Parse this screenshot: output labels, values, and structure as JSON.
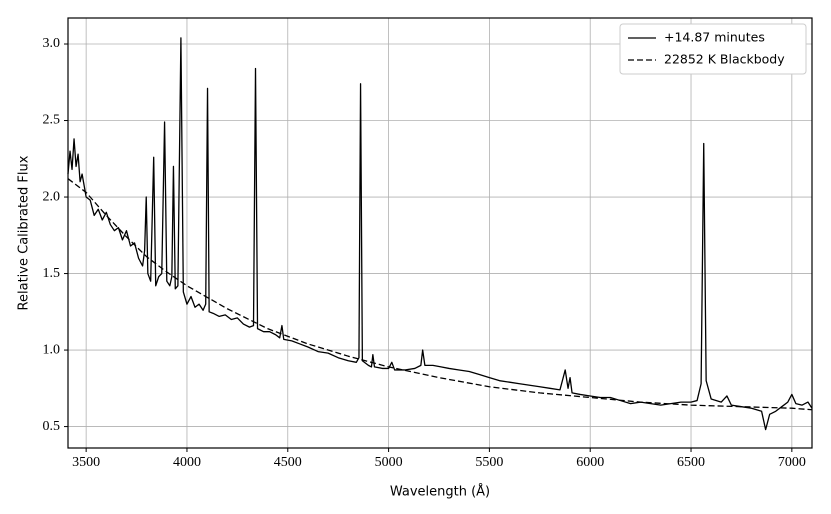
{
  "chart_data": {
    "type": "line",
    "xlabel": "Wavelength (Å)",
    "ylabel": "Relative Calibrated Flux",
    "xlim": [
      3410,
      7100
    ],
    "ylim": [
      0.36,
      3.17
    ],
    "xticks": [
      3500,
      4000,
      4500,
      5000,
      5500,
      6000,
      6500,
      7000
    ],
    "yticks": [
      0.5,
      {
        "value": 1,
        "label": "1.0"
      },
      1.5,
      {
        "value": 2,
        "label": "2.0"
      },
      2.5,
      {
        "value": 3,
        "label": "3.0"
      }
    ],
    "grid": true,
    "legend": "upper right",
    "series": [
      {
        "name": "+14.87 minutes",
        "color": "#000000",
        "linestyle": "solid",
        "x": [
          3410,
          3420,
          3430,
          3440,
          3450,
          3460,
          3470,
          3480,
          3500,
          3520,
          3540,
          3560,
          3580,
          3600,
          3620,
          3640,
          3660,
          3680,
          3700,
          3720,
          3740,
          3760,
          3780,
          3790,
          3798,
          3806,
          3820,
          3835,
          3845,
          3860,
          3875,
          3889,
          3900,
          3915,
          3925,
          3933,
          3942,
          3955,
          3970,
          3982,
          4000,
          4020,
          4040,
          4060,
          4080,
          4093,
          4102,
          4110,
          4130,
          4160,
          4190,
          4220,
          4250,
          4280,
          4310,
          4330,
          4340,
          4350,
          4380,
          4410,
          4440,
          4460,
          4471,
          4480,
          4520,
          4560,
          4600,
          4650,
          4700,
          4750,
          4800,
          4840,
          4853,
          4861,
          4870,
          4900,
          4915,
          4922,
          4930,
          4970,
          5000,
          5016,
          5030,
          5080,
          5130,
          5160,
          5169,
          5180,
          5220,
          5260,
          5300,
          5350,
          5400,
          5450,
          5500,
          5550,
          5600,
          5650,
          5700,
          5750,
          5800,
          5850,
          5876,
          5890,
          5900,
          5910,
          5950,
          6000,
          6050,
          6100,
          6150,
          6200,
          6250,
          6300,
          6350,
          6400,
          6450,
          6500,
          6530,
          6550,
          6563,
          6575,
          6600,
          6650,
          6678,
          6700,
          6750,
          6800,
          6850,
          6870,
          6890,
          6920,
          6950,
          6980,
          7000,
          7020,
          7050,
          7080,
          7100
        ],
        "values": [
          2.15,
          2.3,
          2.18,
          2.38,
          2.2,
          2.28,
          2.1,
          2.15,
          2.0,
          1.98,
          1.88,
          1.92,
          1.85,
          1.9,
          1.82,
          1.78,
          1.8,
          1.72,
          1.78,
          1.68,
          1.7,
          1.6,
          1.55,
          1.65,
          2.0,
          1.5,
          1.45,
          2.26,
          1.42,
          1.48,
          1.5,
          2.49,
          1.45,
          1.42,
          1.48,
          2.2,
          1.4,
          1.42,
          3.04,
          1.38,
          1.3,
          1.35,
          1.28,
          1.3,
          1.26,
          1.3,
          2.71,
          1.25,
          1.24,
          1.22,
          1.23,
          1.2,
          1.21,
          1.17,
          1.15,
          1.16,
          2.84,
          1.14,
          1.12,
          1.12,
          1.1,
          1.08,
          1.16,
          1.07,
          1.06,
          1.04,
          1.02,
          0.99,
          0.98,
          0.95,
          0.93,
          0.92,
          0.95,
          2.74,
          0.93,
          0.9,
          0.89,
          0.97,
          0.89,
          0.88,
          0.88,
          0.92,
          0.87,
          0.87,
          0.88,
          0.9,
          1.0,
          0.9,
          0.9,
          0.89,
          0.88,
          0.87,
          0.86,
          0.84,
          0.82,
          0.8,
          0.79,
          0.78,
          0.77,
          0.76,
          0.75,
          0.74,
          0.87,
          0.75,
          0.82,
          0.72,
          0.71,
          0.7,
          0.69,
          0.69,
          0.67,
          0.65,
          0.66,
          0.65,
          0.64,
          0.65,
          0.66,
          0.66,
          0.67,
          0.78,
          2.35,
          0.8,
          0.68,
          0.66,
          0.7,
          0.64,
          0.63,
          0.62,
          0.6,
          0.48,
          0.58,
          0.6,
          0.63,
          0.66,
          0.71,
          0.65,
          0.64,
          0.66,
          0.62
        ]
      },
      {
        "name": "22852 K Blackbody",
        "color": "#000000",
        "linestyle": "dashed",
        "x": [
          3410,
          3500,
          3600,
          3700,
          3800,
          3900,
          4000,
          4200,
          4400,
          4600,
          4800,
          5000,
          5250,
          5500,
          5750,
          6000,
          6250,
          6500,
          6750,
          7000,
          7100
        ],
        "values": [
          2.12,
          2.03,
          1.88,
          1.74,
          1.61,
          1.51,
          1.42,
          1.27,
          1.14,
          1.04,
          0.96,
          0.89,
          0.82,
          0.76,
          0.72,
          0.69,
          0.66,
          0.64,
          0.63,
          0.62,
          0.61
        ]
      }
    ]
  }
}
